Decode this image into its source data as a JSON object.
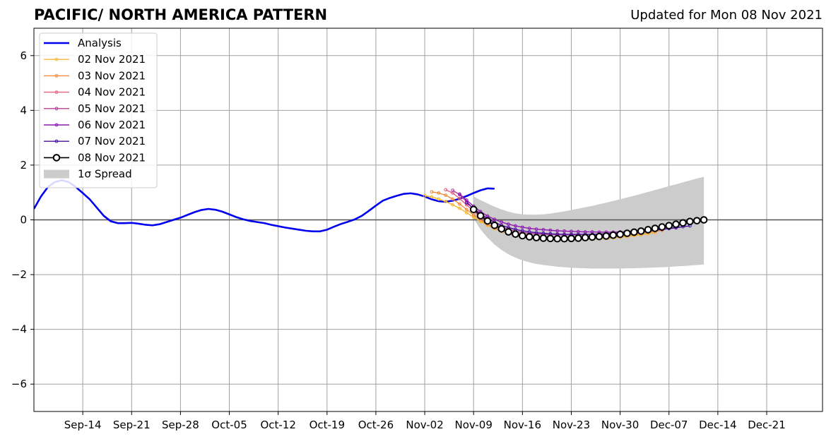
{
  "chart_data": {
    "type": "line",
    "title": "PACIFIC/ NORTH AMERICA PATTERN",
    "subtitle": "Updated for Mon 08 Nov 2021",
    "xlabel": "",
    "ylabel": "",
    "ylim": [
      -7,
      7
    ],
    "xlim": [
      "2021-09-07",
      "2021-12-29"
    ],
    "x_ticks": [
      {
        "date": "2021-09-14",
        "label": "Sep-14"
      },
      {
        "date": "2021-09-21",
        "label": "Sep-21"
      },
      {
        "date": "2021-09-28",
        "label": "Sep-28"
      },
      {
        "date": "2021-10-05",
        "label": "Oct-05"
      },
      {
        "date": "2021-10-12",
        "label": "Oct-12"
      },
      {
        "date": "2021-10-19",
        "label": "Oct-19"
      },
      {
        "date": "2021-10-26",
        "label": "Oct-26"
      },
      {
        "date": "2021-11-02",
        "label": "Nov-02"
      },
      {
        "date": "2021-11-09",
        "label": "Nov-09"
      },
      {
        "date": "2021-11-16",
        "label": "Nov-16"
      },
      {
        "date": "2021-11-23",
        "label": "Nov-23"
      },
      {
        "date": "2021-11-30",
        "label": "Nov-30"
      },
      {
        "date": "2021-12-07",
        "label": "Dec-07"
      },
      {
        "date": "2021-12-14",
        "label": "Dec-14"
      },
      {
        "date": "2021-12-21",
        "label": "Dec-21"
      }
    ],
    "y_ticks": [
      {
        "value": -6,
        "label": "−6"
      },
      {
        "value": -4,
        "label": "−4"
      },
      {
        "value": -2,
        "label": "−2"
      },
      {
        "value": 0,
        "label": "0"
      },
      {
        "value": 2,
        "label": "2"
      },
      {
        "value": 4,
        "label": "4"
      },
      {
        "value": 6,
        "label": "6"
      }
    ],
    "grid": true,
    "legend_position": "upper-left",
    "zero_line": true,
    "series": [
      {
        "name": "Analysis",
        "color": "#0000ee",
        "style": "thick-line",
        "start": "2021-09-07",
        "values": [
          0.4,
          0.85,
          1.2,
          1.38,
          1.45,
          1.38,
          1.2,
          0.98,
          0.75,
          0.45,
          0.15,
          -0.05,
          -0.12,
          -0.12,
          -0.11,
          -0.14,
          -0.18,
          -0.2,
          -0.16,
          -0.08,
          0.0,
          0.08,
          0.18,
          0.28,
          0.36,
          0.4,
          0.37,
          0.3,
          0.2,
          0.1,
          0.02,
          -0.04,
          -0.08,
          -0.12,
          -0.18,
          -0.23,
          -0.28,
          -0.32,
          -0.36,
          -0.4,
          -0.42,
          -0.42,
          -0.36,
          -0.25,
          -0.15,
          -0.07,
          0.02,
          0.15,
          0.33,
          0.52,
          0.7,
          0.8,
          0.88,
          0.95,
          0.97,
          0.93,
          0.85,
          0.75,
          0.68,
          0.66,
          0.7,
          0.77,
          0.87,
          0.98,
          1.08,
          1.15,
          1.14
        ]
      },
      {
        "name": "02 Nov 2021",
        "color": "#f4b733",
        "style": "thin-line-markers",
        "start": "2021-11-02",
        "values": [
          0.88,
          0.84,
          0.76,
          0.67,
          0.55,
          0.42,
          0.26,
          0.1,
          -0.06,
          -0.2,
          -0.32,
          -0.42,
          -0.5,
          -0.56,
          -0.61,
          -0.64,
          -0.66,
          -0.68,
          -0.69,
          -0.7,
          -0.71,
          -0.71,
          -0.71,
          -0.71,
          -0.7,
          -0.69,
          -0.68,
          -0.66,
          -0.64,
          -0.61,
          -0.58,
          -0.55,
          -0.51,
          -0.47
        ]
      },
      {
        "name": "03 Nov 2021",
        "color": "#f08a3c",
        "style": "thin-line-markers",
        "start": "2021-11-03",
        "values": [
          1.02,
          0.98,
          0.9,
          0.76,
          0.58,
          0.38,
          0.18,
          0.0,
          -0.16,
          -0.3,
          -0.41,
          -0.5,
          -0.57,
          -0.62,
          -0.66,
          -0.68,
          -0.7,
          -0.71,
          -0.72,
          -0.72,
          -0.72,
          -0.71,
          -0.7,
          -0.69,
          -0.67,
          -0.65,
          -0.63,
          -0.6,
          -0.57,
          -0.54,
          -0.5,
          -0.46,
          -0.42,
          -0.38
        ]
      },
      {
        "name": "04 Nov 2021",
        "color": "#e0607e",
        "style": "thin-line-markers",
        "start": "2021-11-05",
        "values": [
          1.1,
          0.98,
          0.78,
          0.55,
          0.32,
          0.12,
          -0.06,
          -0.2,
          -0.32,
          -0.41,
          -0.48,
          -0.53,
          -0.57,
          -0.6,
          -0.62,
          -0.63,
          -0.64,
          -0.64,
          -0.64,
          -0.63,
          -0.62,
          -0.61,
          -0.6,
          -0.58,
          -0.56,
          -0.54,
          -0.51,
          -0.48,
          -0.45,
          -0.41,
          -0.38,
          -0.34
        ]
      },
      {
        "name": "05 Nov 2021",
        "color": "#b63c9a",
        "style": "thin-line-markers",
        "start": "2021-11-06",
        "values": [
          1.08,
          0.92,
          0.66,
          0.4,
          0.18,
          0.0,
          -0.15,
          -0.26,
          -0.35,
          -0.41,
          -0.46,
          -0.49,
          -0.51,
          -0.53,
          -0.54,
          -0.54,
          -0.55,
          -0.55,
          -0.55,
          -0.54,
          -0.53,
          -0.52,
          -0.5,
          -0.48,
          -0.46,
          -0.43,
          -0.4,
          -0.37,
          -0.34,
          -0.3,
          -0.27,
          -0.23
        ]
      },
      {
        "name": "06 Nov 2021",
        "color": "#8e1ab0",
        "style": "thin-line-markers",
        "start": "2021-11-07",
        "values": [
          0.94,
          0.72,
          0.5,
          0.3,
          0.14,
          0.02,
          -0.08,
          -0.16,
          -0.22,
          -0.27,
          -0.31,
          -0.34,
          -0.36,
          -0.38,
          -0.4,
          -0.41,
          -0.42,
          -0.43,
          -0.44,
          -0.44,
          -0.45,
          -0.45,
          -0.45,
          -0.44,
          -0.43,
          -0.42,
          -0.41,
          -0.39,
          -0.37,
          -0.34,
          -0.31,
          -0.28
        ]
      },
      {
        "name": "07 Nov 2021",
        "color": "#4a0fa0",
        "style": "thin-line-markers",
        "start": "2021-11-08",
        "values": [
          0.62,
          0.42,
          0.22,
          0.05,
          -0.09,
          -0.2,
          -0.28,
          -0.35,
          -0.4,
          -0.44,
          -0.47,
          -0.49,
          -0.51,
          -0.52,
          -0.53,
          -0.53,
          -0.53,
          -0.53,
          -0.53,
          -0.52,
          -0.51,
          -0.5,
          -0.49,
          -0.47,
          -0.45,
          -0.43,
          -0.41,
          -0.38,
          -0.35,
          -0.32,
          -0.29,
          -0.25,
          -0.22
        ]
      },
      {
        "name": "08 Nov 2021",
        "color": "#000000",
        "style": "open-circles",
        "start": "2021-11-09",
        "values": [
          0.38,
          0.15,
          -0.04,
          -0.2,
          -0.33,
          -0.44,
          -0.52,
          -0.58,
          -0.62,
          -0.65,
          -0.67,
          -0.68,
          -0.69,
          -0.69,
          -0.68,
          -0.67,
          -0.65,
          -0.63,
          -0.61,
          -0.59,
          -0.56,
          -0.53,
          -0.49,
          -0.45,
          -0.41,
          -0.36,
          -0.31,
          -0.26,
          -0.21,
          -0.16,
          -0.11,
          -0.06,
          -0.03,
          0.0
        ]
      }
    ],
    "spread": {
      "name": "1σ Spread",
      "color": "#cccccc",
      "start": "2021-11-09",
      "upper": [
        0.85,
        0.72,
        0.6,
        0.48,
        0.38,
        0.3,
        0.24,
        0.2,
        0.19,
        0.19,
        0.2,
        0.23,
        0.27,
        0.31,
        0.36,
        0.41,
        0.46,
        0.51,
        0.57,
        0.63,
        0.69,
        0.75,
        0.82,
        0.88,
        0.95,
        1.02,
        1.09,
        1.16,
        1.23,
        1.3,
        1.37,
        1.44,
        1.51,
        1.57
      ],
      "lower": [
        0.05,
        -0.35,
        -0.65,
        -0.9,
        -1.1,
        -1.26,
        -1.38,
        -1.48,
        -1.55,
        -1.61,
        -1.65,
        -1.68,
        -1.71,
        -1.73,
        -1.75,
        -1.76,
        -1.77,
        -1.78,
        -1.78,
        -1.78,
        -1.78,
        -1.78,
        -1.77,
        -1.77,
        -1.76,
        -1.75,
        -1.74,
        -1.73,
        -1.72,
        -1.7,
        -1.69,
        -1.67,
        -1.65,
        -1.63
      ]
    }
  }
}
